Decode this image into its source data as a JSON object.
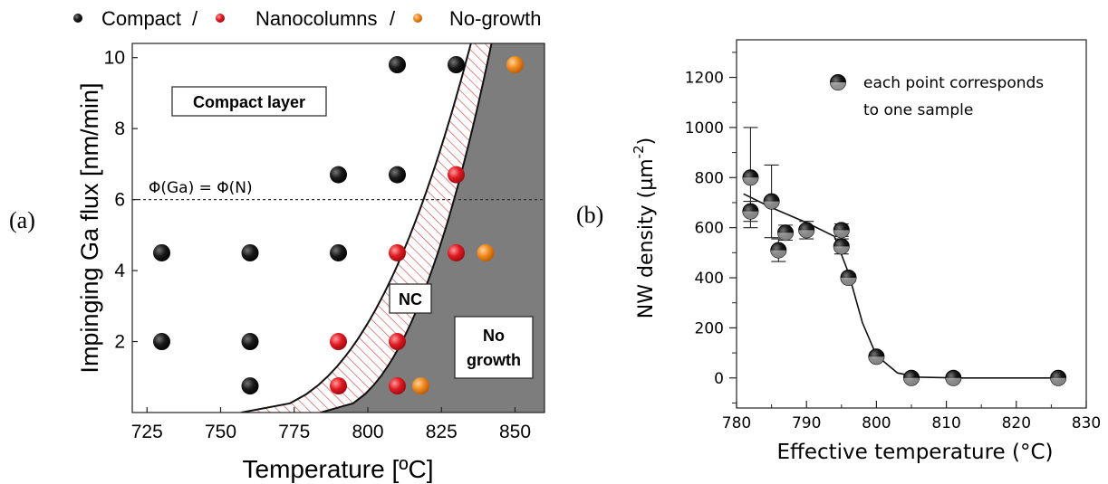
{
  "chart_data": [
    {
      "panel": "(a)",
      "type": "scatter",
      "xlabel": "Temperature [ºC]",
      "ylabel": "Impinging Ga flux [nm/min]",
      "xlim": [
        720,
        860
      ],
      "ylim": [
        0,
        10.4
      ],
      "xticks": [
        725,
        750,
        775,
        800,
        825,
        850
      ],
      "yticks": [
        2,
        4,
        6,
        8,
        10
      ],
      "legend": {
        "placement": "top",
        "entries": [
          {
            "label": "Compact",
            "sep": "/",
            "color": "#111111"
          },
          {
            "label": "Nanocolumns",
            "sep": "/",
            "color": "#d9121b"
          },
          {
            "label": "No-growth",
            "sep": "",
            "color": "#ee8a1e"
          }
        ]
      },
      "series": [
        {
          "name": "Compact",
          "color": "#111111",
          "points": [
            [
              730,
              4.5
            ],
            [
              760,
              4.5
            ],
            [
              790,
              4.5
            ],
            [
              730,
              2.0
            ],
            [
              760,
              2.0
            ],
            [
              760,
              0.75
            ],
            [
              790,
              6.7
            ],
            [
              810,
              6.7
            ],
            [
              810,
              9.8
            ],
            [
              830,
              9.8
            ]
          ]
        },
        {
          "name": "Nanocolumns",
          "color": "#d9121b",
          "points": [
            [
              830,
              6.7
            ],
            [
              810,
              4.5
            ],
            [
              830,
              4.5
            ],
            [
              790,
              2.0
            ],
            [
              810,
              2.0
            ],
            [
              790,
              0.75
            ],
            [
              810,
              0.75
            ]
          ]
        },
        {
          "name": "No-growth",
          "color": "#ee8a1e",
          "points": [
            [
              850,
              9.8
            ],
            [
              840,
              4.5
            ],
            [
              818,
              0.75
            ]
          ]
        }
      ],
      "annotations": {
        "compact_region": "Compact layer",
        "nc_region": "NC",
        "nogrowth_line1": "No",
        "nogrowth_line2": "growth",
        "threshold": "Φ(Ga) = Φ(N)",
        "threshold_value": 6
      },
      "nogrowth_fill": "#7d7d7d"
    },
    {
      "panel": "(b)",
      "type": "scatter",
      "xlabel": "Effective temperature (°C)",
      "ylabel": "NW density (µm",
      "ylabel_sup": "-2",
      "ylabel_close": ")",
      "xlim": [
        780,
        830
      ],
      "ylim": [
        -120,
        1350
      ],
      "xticks": [
        780,
        790,
        800,
        810,
        820,
        830
      ],
      "yticks": [
        0,
        200,
        400,
        600,
        800,
        1000,
        1200
      ],
      "legend_lines": [
        "each point corresponds",
        "to one sample"
      ],
      "legend_placement": "top-right",
      "points": [
        {
          "x": 782,
          "y": 800,
          "yerr": 200
        },
        {
          "x": 782,
          "y": 665,
          "yerr": 40
        },
        {
          "x": 785,
          "y": 705,
          "yerr": 145
        },
        {
          "x": 786,
          "y": 510,
          "yerr": 45
        },
        {
          "x": 787,
          "y": 580,
          "yerr": 30
        },
        {
          "x": 790,
          "y": 590,
          "yerr": 35
        },
        {
          "x": 795,
          "y": 590,
          "yerr": 25
        },
        {
          "x": 795,
          "y": 525,
          "yerr": 30
        },
        {
          "x": 796,
          "y": 400,
          "yerr": 15
        },
        {
          "x": 800,
          "y": 85,
          "yerr": 0
        },
        {
          "x": 805,
          "y": 0,
          "yerr": 0
        },
        {
          "x": 811,
          "y": 0,
          "yerr": 0
        },
        {
          "x": 826,
          "y": 0,
          "yerr": 0
        }
      ],
      "fit_curve": [
        [
          781,
          735
        ],
        [
          785,
          680
        ],
        [
          790,
          620
        ],
        [
          794,
          565
        ],
        [
          796,
          420
        ],
        [
          798,
          220
        ],
        [
          800,
          90
        ],
        [
          803,
          20
        ],
        [
          806,
          3
        ],
        [
          812,
          0
        ],
        [
          826,
          0
        ]
      ]
    }
  ],
  "panel_labels": {
    "a": "(a)",
    "b": "(b)"
  }
}
